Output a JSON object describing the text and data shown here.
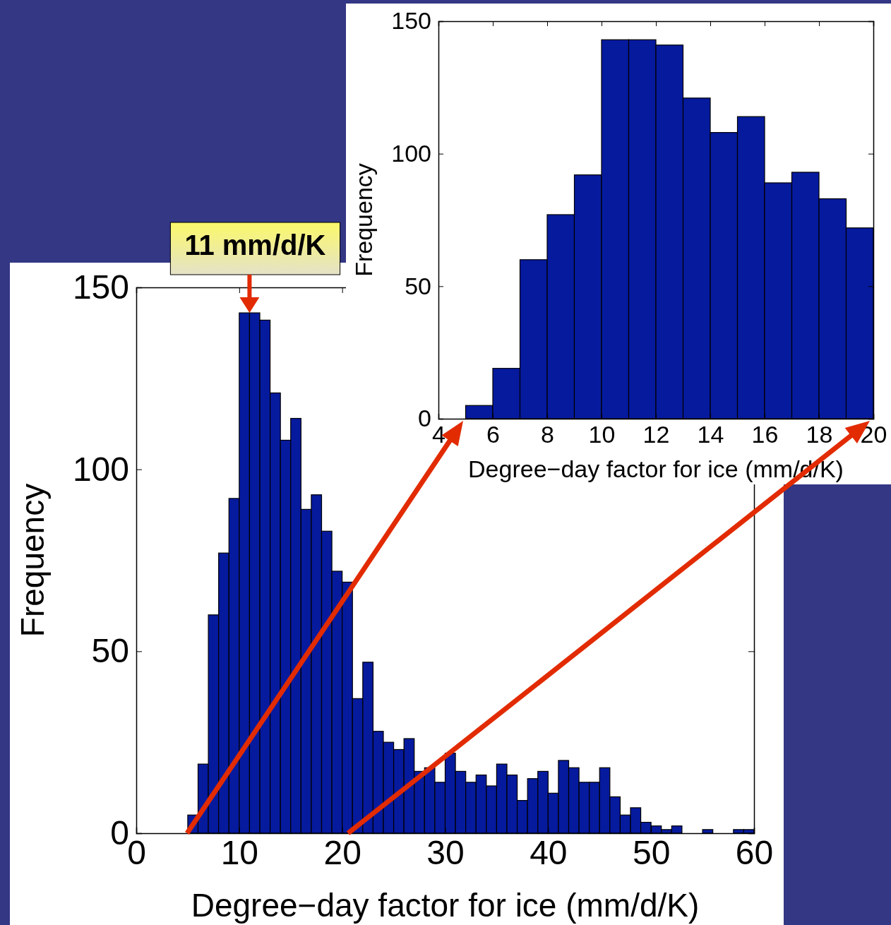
{
  "chart_data": [
    {
      "type": "histogram",
      "xlabel": "Degree−day factor for ice (mm/d/K)",
      "ylabel": "Frequency",
      "color": "#061a9e",
      "bins": [
        0,
        1,
        2,
        3,
        4,
        5,
        6,
        7,
        8,
        9,
        10,
        11,
        12,
        13,
        14,
        15,
        16,
        17,
        18,
        19,
        20,
        21,
        22,
        23,
        24,
        25,
        26,
        27,
        28,
        29,
        30,
        31,
        32,
        33,
        34,
        35,
        36,
        37,
        38,
        39,
        40,
        41,
        42,
        43,
        44,
        45,
        46,
        47,
        48,
        49,
        50,
        51,
        52,
        53,
        54,
        55,
        56,
        57,
        58,
        59,
        60
      ],
      "values": [
        0,
        0,
        0,
        0,
        0,
        5,
        19,
        60,
        77,
        92,
        143,
        143,
        141,
        121,
        108,
        114,
        89,
        93,
        83,
        72,
        69,
        37,
        47,
        28,
        25,
        23,
        26,
        17,
        18,
        14,
        22,
        17,
        14,
        16,
        13,
        19,
        16,
        9,
        15,
        17,
        11,
        20,
        18,
        14,
        14,
        18,
        10,
        5,
        7,
        3,
        2,
        1,
        2,
        0,
        0,
        1,
        0,
        0,
        1,
        1
      ],
      "xlim": [
        0,
        60
      ],
      "xticks": [
        0,
        10,
        20,
        30,
        40,
        50,
        60
      ],
      "ylim": [
        0,
        150
      ],
      "yticks": [
        0,
        50,
        100,
        150
      ],
      "annotations": [
        {
          "text": "11 mm/d/K",
          "x": 11,
          "y": 143
        }
      ]
    },
    {
      "type": "histogram",
      "xlabel": "Degree−day factor for ice (mm/d/K)",
      "ylabel": "Frequency",
      "color": "#061a9e",
      "bins": [
        4,
        5,
        6,
        7,
        8,
        9,
        10,
        11,
        12,
        13,
        14,
        15,
        16,
        17,
        18,
        19,
        20
      ],
      "values": [
        0,
        5,
        19,
        60,
        77,
        92,
        143,
        143,
        141,
        121,
        108,
        114,
        89,
        93,
        83,
        72
      ],
      "xlim": [
        4,
        20
      ],
      "xticks": [
        4,
        6,
        8,
        10,
        12,
        14,
        16,
        18,
        20
      ],
      "ylim": [
        0,
        150
      ],
      "yticks": [
        0,
        50,
        100,
        150
      ]
    }
  ]
}
